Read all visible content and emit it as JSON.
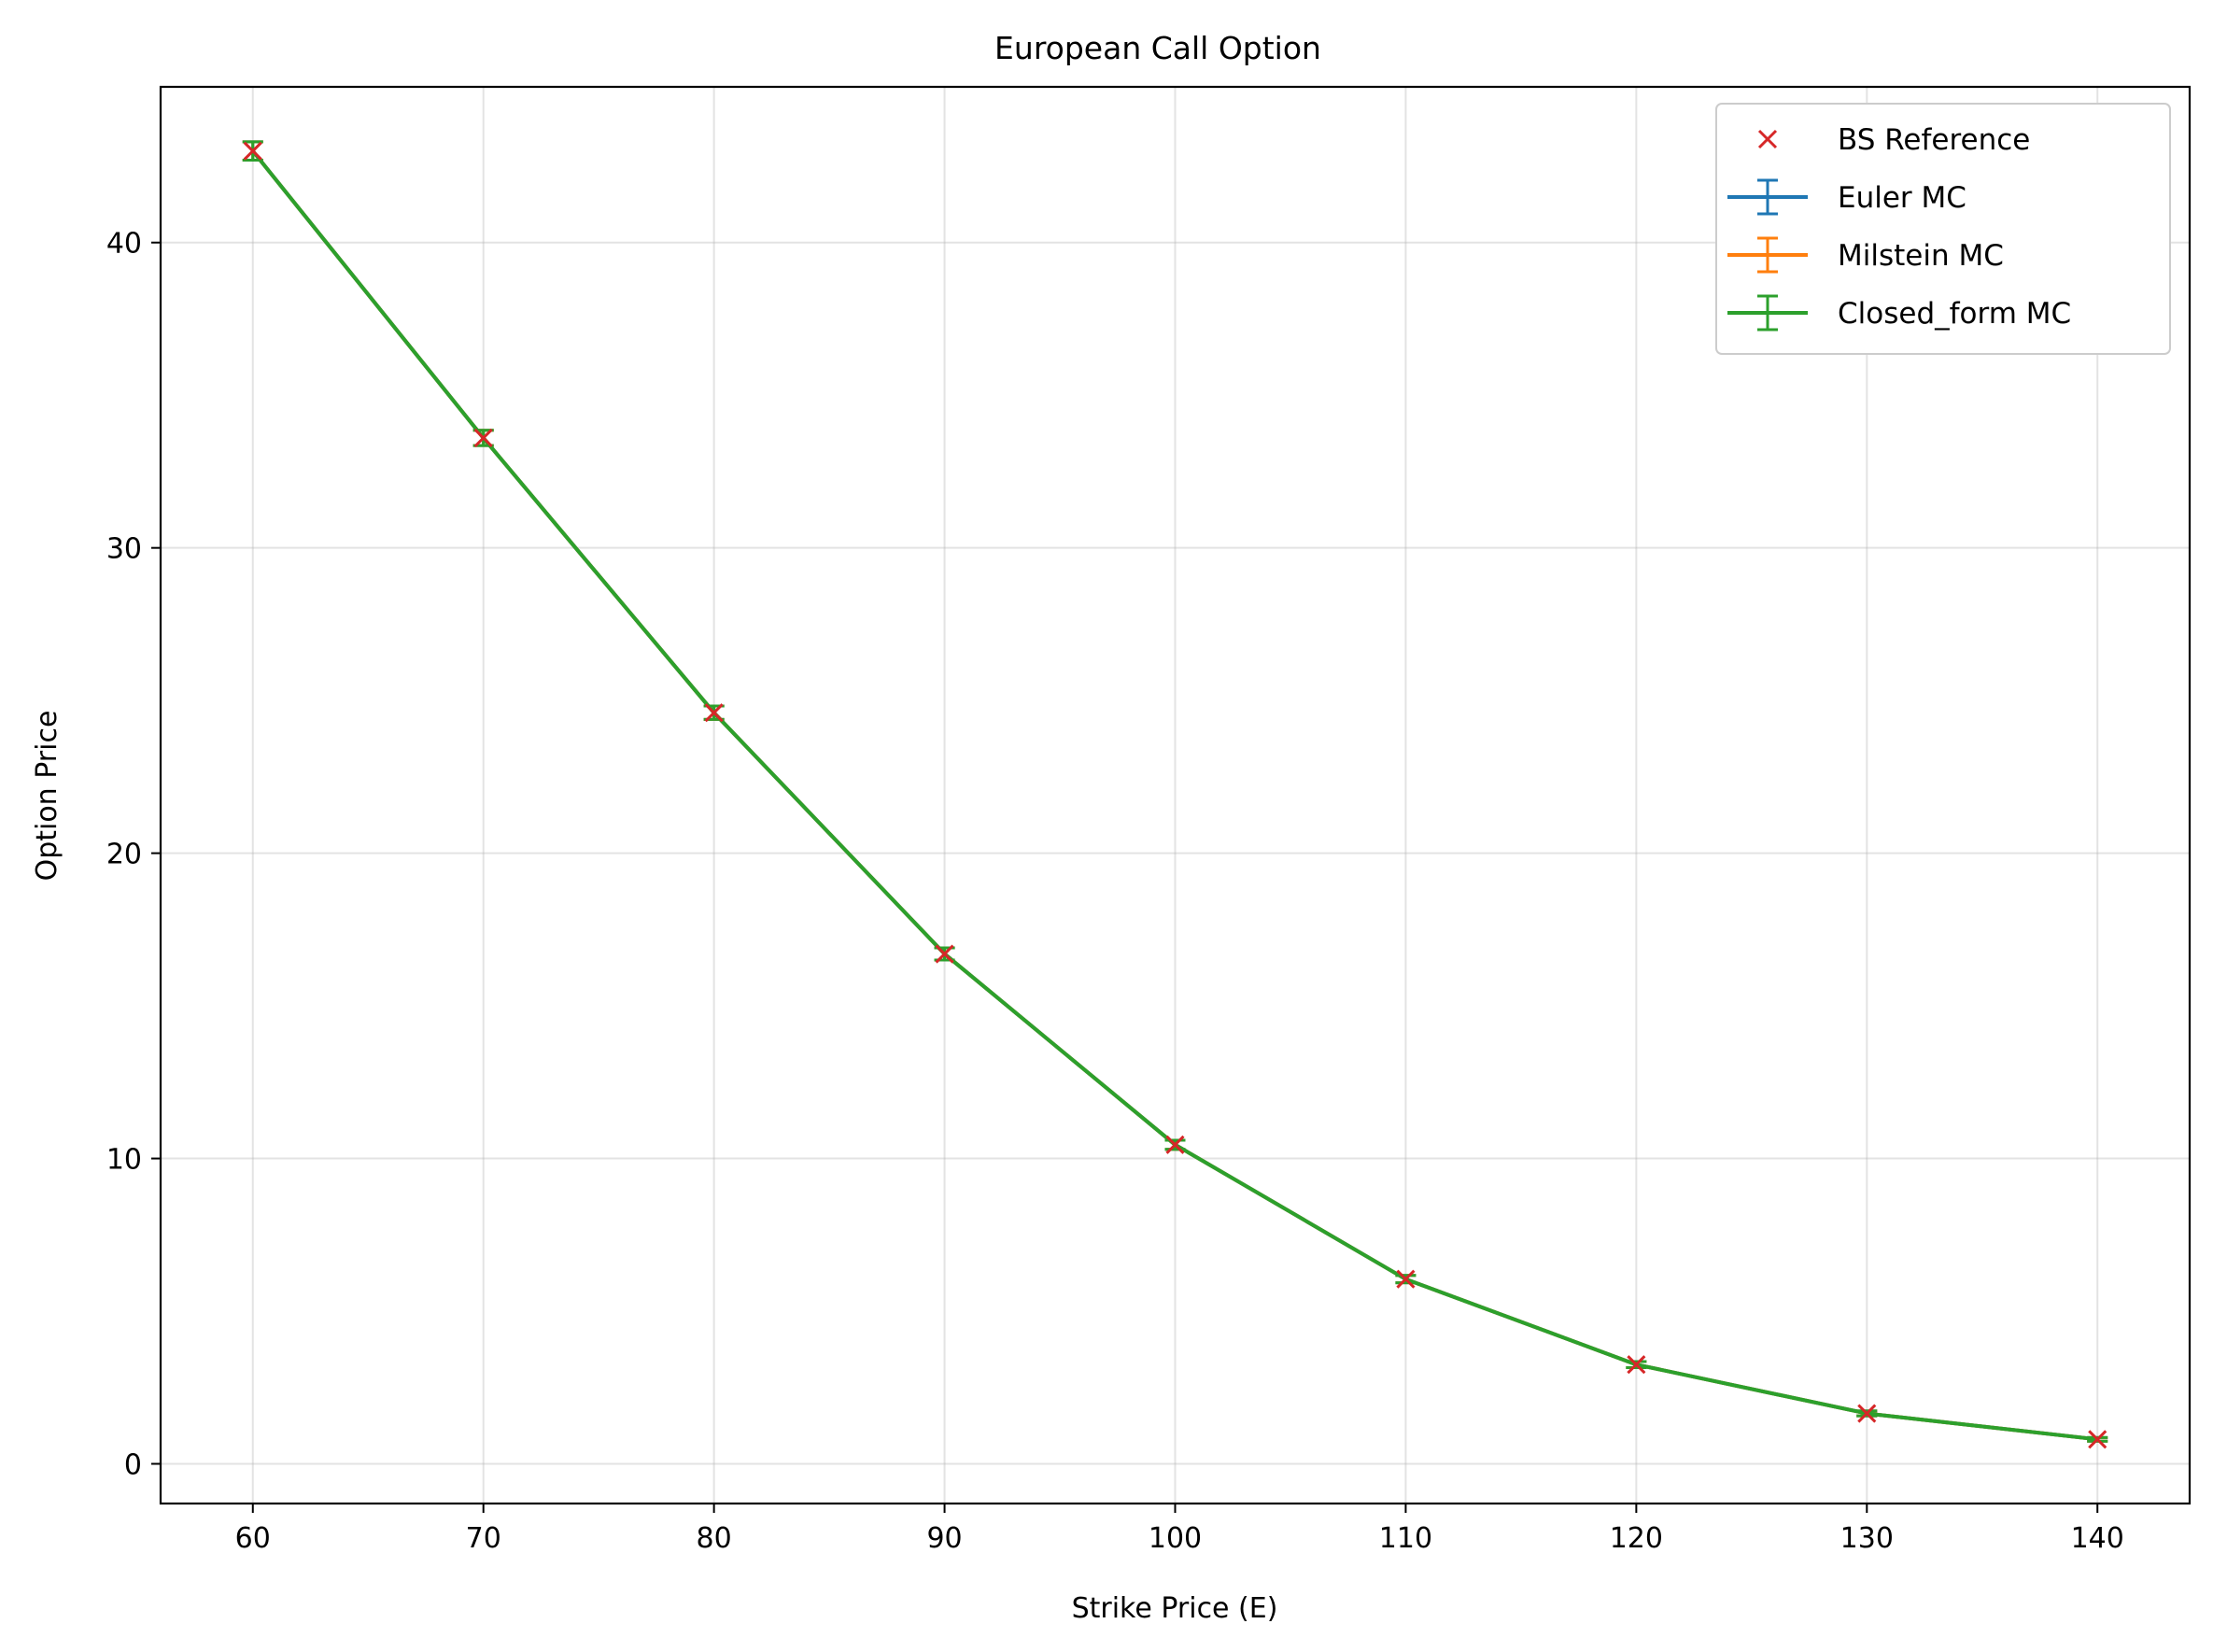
{
  "chart_data": {
    "type": "line",
    "title": "European Call Option",
    "xlabel": "Strike Price (E)",
    "ylabel": "Option Price",
    "x": [
      60,
      70,
      80,
      90,
      100,
      110,
      120,
      130,
      140
    ],
    "xlim": [
      56,
      144
    ],
    "ylim": [
      -1.3,
      45.1
    ],
    "xticks": [
      60,
      70,
      80,
      90,
      100,
      110,
      120,
      130,
      140
    ],
    "yticks": [
      0,
      10,
      20,
      30,
      40
    ],
    "grid": true,
    "legend_position": "top-right",
    "series": [
      {
        "name": "BS Reference",
        "style": "marker-x",
        "color": "#d62728",
        "values": [
          43.0,
          33.6,
          24.6,
          16.7,
          10.45,
          6.05,
          3.25,
          1.65,
          0.8
        ]
      },
      {
        "name": "Euler MC",
        "style": "errorbar-line",
        "color": "#1f77b4",
        "values": [
          43.0,
          33.6,
          24.6,
          16.7,
          10.45,
          6.05,
          3.25,
          1.65,
          0.8
        ],
        "error": [
          0.3,
          0.25,
          0.22,
          0.2,
          0.15,
          0.12,
          0.1,
          0.08,
          0.06
        ]
      },
      {
        "name": "Milstein MC",
        "style": "errorbar-line",
        "color": "#ff7f0e",
        "values": [
          43.0,
          33.6,
          24.6,
          16.7,
          10.45,
          6.05,
          3.25,
          1.65,
          0.8
        ],
        "error": [
          0.3,
          0.25,
          0.22,
          0.2,
          0.15,
          0.12,
          0.1,
          0.08,
          0.06
        ]
      },
      {
        "name": "Closed_form MC",
        "style": "errorbar-line",
        "color": "#2ca02c",
        "values": [
          43.0,
          33.6,
          24.6,
          16.7,
          10.45,
          6.05,
          3.25,
          1.65,
          0.8
        ],
        "error": [
          0.3,
          0.25,
          0.22,
          0.2,
          0.15,
          0.12,
          0.1,
          0.08,
          0.06
        ]
      }
    ]
  }
}
